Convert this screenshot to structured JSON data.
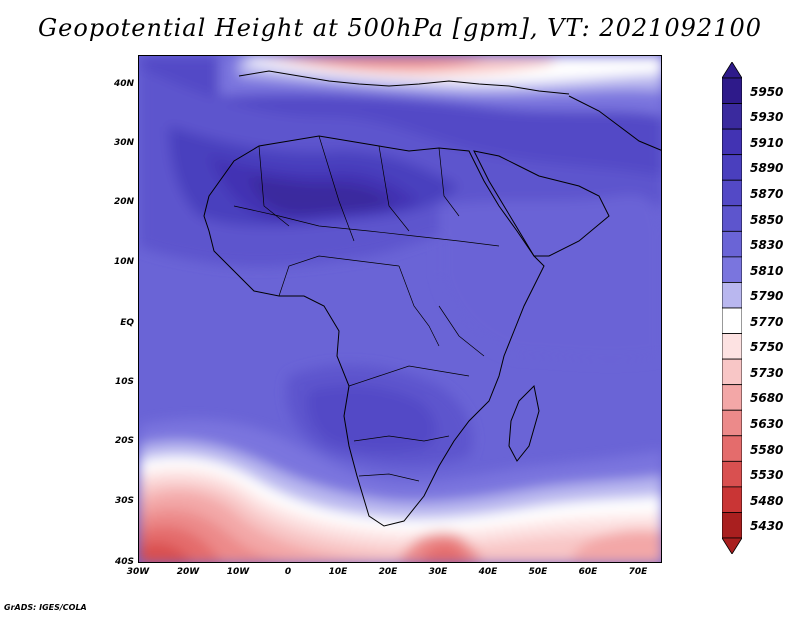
{
  "title": "Geopotential Height at 500hPa [gpm], VT: 2021092100",
  "credit": "GrADS: IGES/COLA",
  "map": {
    "lat_ticks": [
      "40N",
      "30N",
      "20N",
      "10N",
      "EQ",
      "10S",
      "20S",
      "30S",
      "40S"
    ],
    "lon_ticks": [
      "30W",
      "20W",
      "10W",
      "0",
      "10E",
      "20E",
      "30E",
      "40E",
      "50E",
      "60E",
      "70E"
    ]
  },
  "legend": {
    "levels": [
      "5950",
      "5930",
      "5910",
      "5890",
      "5870",
      "5850",
      "5830",
      "5810",
      "5790",
      "5770",
      "5750",
      "5730",
      "5680",
      "5630",
      "5580",
      "5530",
      "5480",
      "5430"
    ],
    "colors": [
      "#2e1a8a",
      "#3a2a9e",
      "#4233b3",
      "#4a3fbe",
      "#5349c6",
      "#5d55cd",
      "#6a64d6",
      "#7a75de",
      "#b9b7ef",
      "#ffffff",
      "#fde2e2",
      "#f8c6c6",
      "#f3a7a7",
      "#ec8a8a",
      "#e46c6c",
      "#d95050",
      "#c93535",
      "#a91f1f"
    ]
  }
}
